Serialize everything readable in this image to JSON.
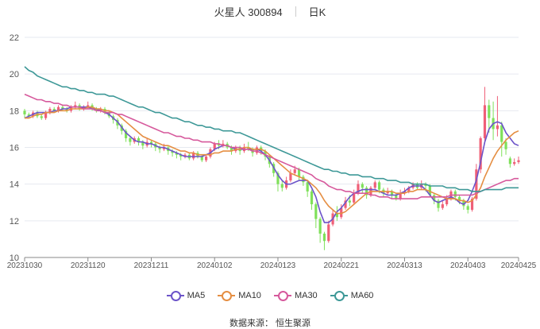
{
  "header": {
    "stock": "火星人 300894",
    "period": "日K"
  },
  "source": "数据来源：  恒生聚源",
  "colors": {
    "up": "#ef5f77",
    "down": "#7fe05a",
    "ma5": "#6c54c9",
    "ma10": "#e58e42",
    "ma30": "#d6599c",
    "ma60": "#3d9897"
  },
  "chart_data": {
    "type": "candlestick",
    "ylim": [
      10,
      22
    ],
    "yticks": [
      "10",
      "12",
      "14",
      "16",
      "18",
      "20",
      "22"
    ],
    "xticks": [
      "20231030",
      "20231120",
      "20231211",
      "20240102",
      "20240123",
      "20240221",
      "20240313",
      "20240403",
      "20240425"
    ],
    "x_tick_index": [
      0,
      15,
      30,
      45,
      60,
      75,
      90,
      105,
      117
    ],
    "n": 118,
    "legend": [
      "MA5",
      "MA10",
      "MA30",
      "MA60"
    ],
    "candles": [
      [
        18.0,
        17.8,
        18.1,
        17.6
      ],
      [
        17.8,
        17.7,
        17.9,
        17.6
      ],
      [
        17.7,
        17.9,
        18.0,
        17.6
      ],
      [
        17.9,
        17.7,
        18.0,
        17.6
      ],
      [
        17.7,
        17.6,
        17.8,
        17.5
      ],
      [
        17.6,
        17.9,
        18.0,
        17.5
      ],
      [
        17.9,
        18.1,
        18.2,
        17.8
      ],
      [
        18.1,
        18.0,
        18.2,
        17.9
      ],
      [
        18.0,
        18.2,
        18.3,
        17.9
      ],
      [
        18.2,
        18.1,
        18.3,
        18.0
      ],
      [
        18.1,
        18.0,
        18.2,
        17.9
      ],
      [
        18.0,
        18.2,
        18.3,
        17.9
      ],
      [
        18.2,
        18.3,
        18.5,
        18.1
      ],
      [
        18.3,
        18.1,
        18.4,
        18.0
      ],
      [
        18.1,
        18.2,
        18.3,
        18.0
      ],
      [
        18.2,
        18.3,
        18.5,
        18.1
      ],
      [
        18.3,
        18.1,
        18.4,
        18.0
      ],
      [
        18.1,
        18.0,
        18.2,
        17.9
      ],
      [
        18.0,
        18.1,
        18.2,
        17.9
      ],
      [
        18.1,
        17.9,
        18.2,
        17.8
      ],
      [
        17.9,
        17.7,
        18.0,
        17.6
      ],
      [
        17.7,
        17.5,
        17.8,
        17.3
      ],
      [
        17.5,
        17.2,
        17.6,
        17.0
      ],
      [
        17.2,
        16.9,
        17.3,
        16.7
      ],
      [
        16.9,
        16.5,
        17.0,
        16.3
      ],
      [
        16.5,
        16.3,
        16.6,
        16.1
      ],
      [
        16.3,
        16.5,
        16.6,
        16.2
      ],
      [
        16.5,
        16.3,
        16.6,
        16.1
      ],
      [
        16.3,
        16.1,
        16.4,
        15.9
      ],
      [
        16.1,
        16.3,
        16.5,
        16.0
      ],
      [
        16.3,
        16.2,
        16.4,
        16.0
      ],
      [
        16.2,
        16.0,
        16.3,
        15.8
      ],
      [
        16.0,
        15.9,
        16.1,
        15.7
      ],
      [
        15.9,
        16.0,
        16.2,
        15.8
      ],
      [
        16.0,
        15.8,
        16.1,
        15.6
      ],
      [
        15.8,
        15.7,
        15.9,
        15.5
      ],
      [
        15.7,
        15.6,
        15.8,
        15.4
      ],
      [
        15.6,
        15.5,
        15.7,
        15.3
      ],
      [
        15.5,
        15.6,
        15.7,
        15.4
      ],
      [
        15.6,
        15.4,
        15.7,
        15.3
      ],
      [
        15.4,
        15.7,
        15.8,
        15.3
      ],
      [
        15.7,
        15.5,
        15.8,
        15.4
      ],
      [
        15.5,
        15.3,
        15.6,
        15.2
      ],
      [
        15.3,
        15.5,
        15.6,
        15.2
      ],
      [
        15.5,
        15.9,
        16.0,
        15.4
      ],
      [
        15.9,
        16.2,
        16.3,
        15.8
      ],
      [
        16.2,
        16.1,
        16.4,
        15.9
      ],
      [
        16.1,
        16.2,
        16.4,
        16.0
      ],
      [
        16.2,
        16.0,
        16.3,
        15.9
      ],
      [
        16.0,
        15.8,
        16.1,
        15.6
      ],
      [
        15.8,
        16.0,
        16.1,
        15.7
      ],
      [
        16.0,
        15.8,
        16.1,
        15.6
      ],
      [
        15.8,
        16.0,
        16.2,
        15.7
      ],
      [
        16.0,
        15.9,
        16.3,
        15.8
      ],
      [
        15.9,
        15.7,
        16.0,
        15.5
      ],
      [
        15.7,
        16.0,
        16.1,
        15.6
      ],
      [
        16.0,
        15.8,
        16.1,
        15.6
      ],
      [
        15.8,
        15.5,
        15.9,
        15.3
      ],
      [
        15.5,
        15.1,
        15.6,
        14.9
      ],
      [
        15.1,
        14.6,
        15.2,
        14.4
      ],
      [
        14.6,
        14.0,
        14.7,
        13.6
      ],
      [
        14.0,
        13.8,
        14.2,
        13.6
      ],
      [
        13.8,
        14.2,
        14.4,
        13.7
      ],
      [
        14.2,
        14.6,
        14.8,
        14.1
      ],
      [
        14.6,
        14.8,
        15.0,
        14.5
      ],
      [
        14.8,
        14.4,
        14.9,
        14.2
      ],
      [
        14.4,
        14.1,
        14.5,
        13.9
      ],
      [
        14.1,
        13.6,
        14.2,
        13.3
      ],
      [
        13.6,
        12.9,
        13.7,
        12.6
      ],
      [
        12.9,
        12.1,
        13.0,
        11.6
      ],
      [
        12.1,
        11.3,
        12.2,
        10.8
      ],
      [
        11.3,
        10.9,
        11.4,
        10.4
      ],
      [
        10.9,
        11.8,
        12.0,
        10.8
      ],
      [
        11.8,
        12.4,
        12.6,
        11.7
      ],
      [
        12.4,
        12.2,
        12.8,
        12.0
      ],
      [
        12.2,
        12.7,
        12.9,
        12.1
      ],
      [
        12.7,
        13.1,
        13.3,
        12.6
      ],
      [
        13.1,
        13.0,
        13.4,
        12.8
      ],
      [
        13.0,
        13.5,
        13.7,
        12.9
      ],
      [
        13.5,
        14.0,
        14.2,
        13.4
      ],
      [
        14.0,
        13.8,
        14.1,
        13.5
      ],
      [
        13.8,
        13.4,
        13.9,
        13.2
      ],
      [
        13.4,
        13.8,
        13.9,
        13.3
      ],
      [
        13.8,
        14.1,
        14.2,
        13.7
      ],
      [
        14.1,
        13.7,
        14.2,
        13.5
      ],
      [
        13.7,
        13.5,
        13.8,
        13.3
      ],
      [
        13.5,
        13.6,
        13.8,
        13.4
      ],
      [
        13.6,
        13.4,
        13.7,
        13.2
      ],
      [
        13.4,
        13.2,
        13.5,
        13.1
      ],
      [
        13.2,
        13.5,
        13.7,
        13.1
      ],
      [
        13.5,
        13.6,
        13.8,
        13.4
      ],
      [
        13.6,
        13.8,
        13.9,
        13.5
      ],
      [
        13.8,
        14.0,
        14.1,
        13.7
      ],
      [
        14.0,
        13.8,
        14.1,
        13.7
      ],
      [
        13.8,
        14.0,
        14.2,
        13.7
      ],
      [
        14.0,
        13.9,
        14.1,
        13.6
      ],
      [
        13.9,
        13.4,
        14.0,
        13.3
      ],
      [
        13.4,
        13.1,
        13.5,
        12.9
      ],
      [
        13.1,
        12.7,
        13.2,
        12.5
      ],
      [
        12.7,
        12.9,
        13.1,
        12.6
      ],
      [
        12.9,
        13.2,
        13.4,
        12.8
      ],
      [
        13.2,
        13.6,
        13.7,
        13.1
      ],
      [
        13.6,
        13.3,
        13.7,
        13.1
      ],
      [
        13.3,
        13.1,
        13.4,
        12.9
      ],
      [
        13.1,
        12.8,
        13.2,
        12.6
      ],
      [
        12.8,
        12.6,
        12.9,
        12.4
      ],
      [
        12.6,
        13.2,
        13.3,
        12.5
      ],
      [
        13.2,
        14.8,
        15.1,
        13.1
      ],
      [
        14.8,
        16.5,
        16.6,
        14.6
      ],
      [
        16.5,
        18.3,
        19.3,
        16.2
      ],
      [
        18.3,
        17.6,
        18.6,
        16.8
      ],
      [
        17.6,
        17.0,
        18.5,
        16.4
      ],
      [
        17.0,
        17.2,
        18.8,
        16.6
      ],
      [
        17.2,
        16.3,
        17.4,
        15.5
      ],
      [
        16.3,
        15.9,
        16.5,
        15.6
      ],
      [
        15.4,
        15.1,
        15.5,
        14.9
      ],
      [
        15.1,
        15.2,
        15.4,
        15.0
      ],
      [
        15.2,
        15.3,
        15.5,
        15.1
      ]
    ],
    "series": [
      {
        "name": "MA5",
        "values": [
          17.6,
          17.7,
          17.8,
          17.9,
          17.9,
          17.9,
          17.9,
          18.0,
          18.0,
          18.1,
          18.1,
          18.2,
          18.2,
          18.2,
          18.2,
          18.2,
          18.1,
          18.1,
          18.0,
          17.9,
          17.8,
          17.6,
          17.4,
          17.1,
          16.8,
          16.6,
          16.4,
          16.3,
          16.3,
          16.2,
          16.2,
          16.1,
          16.0,
          16.0,
          15.9,
          15.8,
          15.7,
          15.6,
          15.5,
          15.5,
          15.5,
          15.5,
          15.5,
          15.6,
          15.7,
          15.9,
          16.0,
          16.1,
          16.1,
          16.0,
          15.9,
          15.9,
          15.9,
          15.9,
          15.9,
          15.9,
          15.8,
          15.6,
          15.3,
          14.9,
          14.5,
          14.2,
          14.0,
          14.0,
          14.1,
          14.2,
          14.2,
          14.2,
          13.8,
          13.3,
          12.5,
          11.9,
          11.9,
          12.1,
          12.5,
          12.7,
          13.0,
          13.3,
          13.5,
          13.6,
          13.7,
          13.7,
          13.7,
          13.7,
          13.6,
          13.5,
          13.4,
          13.4,
          13.4,
          13.5,
          13.6,
          13.8,
          13.9,
          13.9,
          13.9,
          13.7,
          13.4,
          13.1,
          13.0,
          13.1,
          13.2,
          13.3,
          13.2,
          13.0,
          12.9,
          13.1,
          13.6,
          14.2,
          15.2,
          16.3,
          17.0,
          17.3,
          17.4,
          17.3,
          16.8,
          16.5,
          16.2,
          16.1
        ]
      },
      {
        "name": "MA10",
        "values": [
          17.6,
          17.6,
          17.7,
          17.8,
          17.8,
          17.9,
          17.9,
          17.9,
          18.0,
          18.0,
          18.0,
          18.1,
          18.1,
          18.1,
          18.1,
          18.2,
          18.2,
          18.1,
          18.1,
          18.0,
          18.0,
          17.9,
          17.8,
          17.6,
          17.4,
          17.2,
          17.0,
          16.8,
          16.6,
          16.5,
          16.4,
          16.3,
          16.2,
          16.1,
          16.1,
          16.0,
          15.9,
          15.8,
          15.8,
          15.7,
          15.7,
          15.6,
          15.6,
          15.6,
          15.6,
          15.7,
          15.7,
          15.8,
          15.8,
          15.8,
          15.9,
          15.9,
          16.0,
          16.0,
          15.9,
          15.9,
          15.9,
          15.8,
          15.6,
          15.4,
          15.2,
          15.0,
          14.8,
          14.6,
          14.5,
          14.4,
          14.3,
          14.2,
          14.0,
          13.8,
          13.5,
          13.1,
          12.8,
          12.6,
          12.4,
          12.4,
          12.5,
          12.7,
          12.9,
          13.1,
          13.3,
          13.5,
          13.6,
          13.6,
          13.6,
          13.6,
          13.6,
          13.6,
          13.5,
          13.5,
          13.5,
          13.6,
          13.6,
          13.7,
          13.7,
          13.7,
          13.6,
          13.5,
          13.4,
          13.3,
          13.2,
          13.2,
          13.2,
          13.1,
          13.1,
          13.0,
          13.1,
          13.4,
          13.8,
          14.4,
          14.9,
          15.4,
          15.8,
          16.1,
          16.4,
          16.6,
          16.8,
          16.9
        ]
      },
      {
        "name": "MA30",
        "values": [
          18.9,
          18.8,
          18.7,
          18.6,
          18.6,
          18.5,
          18.5,
          18.4,
          18.4,
          18.3,
          18.3,
          18.2,
          18.2,
          18.2,
          18.1,
          18.1,
          18.1,
          18.0,
          18.0,
          17.9,
          17.9,
          17.9,
          17.8,
          17.8,
          17.7,
          17.6,
          17.5,
          17.4,
          17.3,
          17.2,
          17.1,
          17.0,
          16.9,
          16.8,
          16.8,
          16.7,
          16.6,
          16.6,
          16.5,
          16.5,
          16.4,
          16.4,
          16.3,
          16.3,
          16.3,
          16.2,
          16.2,
          16.1,
          16.1,
          16.0,
          16.0,
          16.0,
          15.9,
          15.9,
          15.8,
          15.8,
          15.7,
          15.6,
          15.5,
          15.4,
          15.3,
          15.2,
          15.1,
          15.0,
          14.9,
          14.8,
          14.7,
          14.6,
          14.5,
          14.3,
          14.2,
          14.1,
          13.9,
          13.8,
          13.7,
          13.7,
          13.6,
          13.6,
          13.5,
          13.5,
          13.5,
          13.5,
          13.4,
          13.4,
          13.3,
          13.3,
          13.3,
          13.2,
          13.2,
          13.2,
          13.2,
          13.2,
          13.2,
          13.2,
          13.3,
          13.3,
          13.3,
          13.3,
          13.3,
          13.3,
          13.3,
          13.4,
          13.4,
          13.4,
          13.4,
          13.4,
          13.4,
          13.5,
          13.6,
          13.7,
          13.8,
          13.9,
          14.0,
          14.1,
          14.2,
          14.2,
          14.3,
          14.3
        ]
      },
      {
        "name": "MA60",
        "values": [
          20.4,
          20.2,
          20.1,
          19.9,
          19.8,
          19.7,
          19.6,
          19.5,
          19.4,
          19.3,
          19.3,
          19.2,
          19.2,
          19.1,
          19.1,
          19.0,
          19.0,
          18.9,
          18.9,
          18.9,
          18.8,
          18.8,
          18.7,
          18.6,
          18.5,
          18.4,
          18.3,
          18.2,
          18.2,
          18.1,
          18.0,
          17.9,
          17.9,
          17.8,
          17.7,
          17.6,
          17.6,
          17.5,
          17.4,
          17.4,
          17.3,
          17.2,
          17.2,
          17.1,
          17.1,
          17.0,
          17.0,
          16.9,
          16.9,
          16.9,
          16.8,
          16.8,
          16.7,
          16.6,
          16.5,
          16.4,
          16.3,
          16.2,
          16.1,
          16.0,
          15.9,
          15.8,
          15.7,
          15.6,
          15.5,
          15.4,
          15.3,
          15.2,
          15.1,
          15.0,
          14.9,
          14.8,
          14.8,
          14.7,
          14.7,
          14.6,
          14.6,
          14.5,
          14.5,
          14.5,
          14.4,
          14.4,
          14.4,
          14.3,
          14.3,
          14.3,
          14.2,
          14.2,
          14.2,
          14.1,
          14.1,
          14.1,
          14.0,
          14.0,
          14.0,
          14.0,
          13.9,
          13.9,
          13.9,
          13.9,
          13.8,
          13.8,
          13.8,
          13.7,
          13.7,
          13.7,
          13.6,
          13.6,
          13.6,
          13.7,
          13.7,
          13.7,
          13.7,
          13.7,
          13.8,
          13.8,
          13.8,
          13.8
        ]
      }
    ]
  }
}
